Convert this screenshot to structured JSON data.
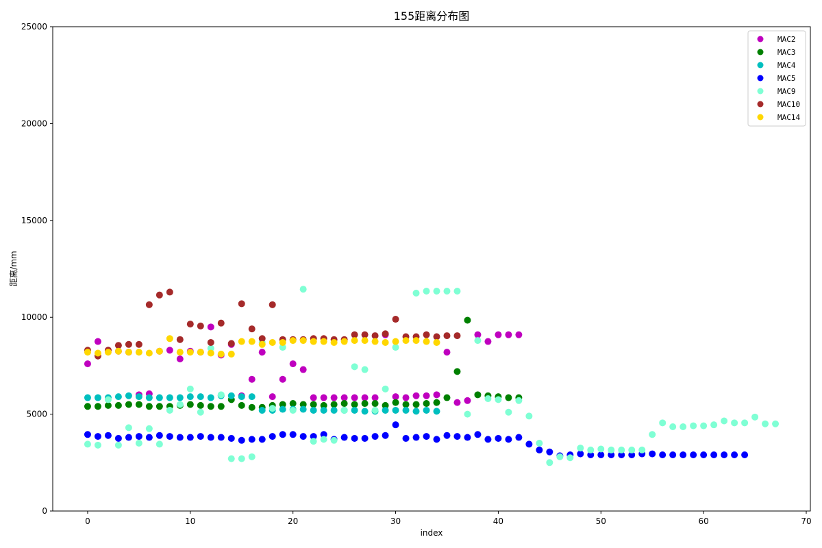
{
  "chart_data": {
    "type": "scatter",
    "title": "155距离分布图",
    "xlabel": "index",
    "ylabel": "距离/mm",
    "xlim": [
      -3.4,
      70.4
    ],
    "ylim": [
      0,
      25000
    ],
    "xticks": [
      0,
      10,
      20,
      30,
      40,
      50,
      60,
      70
    ],
    "yticks": [
      0,
      5000,
      10000,
      15000,
      20000,
      25000
    ],
    "grid": false,
    "legend_position": "top-right",
    "series": [
      {
        "name": "MAC2",
        "color": "#bf00bf",
        "points": [
          [
            0,
            7600
          ],
          [
            1,
            8750
          ],
          [
            2,
            8300
          ],
          [
            3,
            8250
          ],
          [
            4,
            8200
          ],
          [
            5,
            6000
          ],
          [
            6,
            6050
          ],
          [
            7,
            8250
          ],
          [
            8,
            8300
          ],
          [
            9,
            7850
          ],
          [
            10,
            8250
          ],
          [
            11,
            8200
          ],
          [
            12,
            9500
          ],
          [
            13,
            8050
          ],
          [
            14,
            8600
          ],
          [
            15,
            5950
          ],
          [
            16,
            6800
          ],
          [
            17,
            8200
          ],
          [
            18,
            5900
          ],
          [
            19,
            6800
          ],
          [
            20,
            7600
          ],
          [
            21,
            7300
          ],
          [
            22,
            5850
          ],
          [
            23,
            5850
          ],
          [
            24,
            5850
          ],
          [
            25,
            5850
          ],
          [
            26,
            5850
          ],
          [
            27,
            5850
          ],
          [
            28,
            5850
          ],
          [
            29,
            9100
          ],
          [
            30,
            5900
          ],
          [
            31,
            5850
          ],
          [
            32,
            5950
          ],
          [
            33,
            5950
          ],
          [
            34,
            6000
          ],
          [
            35,
            8200
          ],
          [
            36,
            5600
          ],
          [
            37,
            5700
          ],
          [
            38,
            9100
          ],
          [
            39,
            8750
          ],
          [
            40,
            9100
          ],
          [
            41,
            9100
          ],
          [
            42,
            9100
          ]
        ]
      },
      {
        "name": "MAC3",
        "color": "#008000",
        "points": [
          [
            0,
            5400
          ],
          [
            1,
            5400
          ],
          [
            2,
            5450
          ],
          [
            3,
            5450
          ],
          [
            4,
            5500
          ],
          [
            5,
            5500
          ],
          [
            6,
            5400
          ],
          [
            7,
            5400
          ],
          [
            8,
            5400
          ],
          [
            9,
            5450
          ],
          [
            10,
            5500
          ],
          [
            11,
            5450
          ],
          [
            12,
            5400
          ],
          [
            13,
            5400
          ],
          [
            14,
            5750
          ],
          [
            15,
            5450
          ],
          [
            16,
            5350
          ],
          [
            17,
            5350
          ],
          [
            18,
            5450
          ],
          [
            19,
            5500
          ],
          [
            20,
            5550
          ],
          [
            21,
            5500
          ],
          [
            22,
            5500
          ],
          [
            23,
            5450
          ],
          [
            24,
            5500
          ],
          [
            25,
            5550
          ],
          [
            26,
            5500
          ],
          [
            27,
            5550
          ],
          [
            28,
            5550
          ],
          [
            29,
            5450
          ],
          [
            30,
            5600
          ],
          [
            31,
            5500
          ],
          [
            32,
            5500
          ],
          [
            33,
            5550
          ],
          [
            34,
            5600
          ],
          [
            35,
            5850
          ],
          [
            36,
            7200
          ],
          [
            37,
            9850
          ],
          [
            38,
            6000
          ],
          [
            39,
            5950
          ],
          [
            40,
            5900
          ],
          [
            41,
            5850
          ],
          [
            42,
            5850
          ]
        ]
      },
      {
        "name": "MAC4",
        "color": "#00bfbf",
        "points": [
          [
            0,
            5850
          ],
          [
            1,
            5850
          ],
          [
            2,
            5850
          ],
          [
            3,
            5900
          ],
          [
            4,
            5950
          ],
          [
            5,
            5900
          ],
          [
            6,
            5850
          ],
          [
            7,
            5850
          ],
          [
            8,
            5850
          ],
          [
            9,
            5850
          ],
          [
            10,
            5900
          ],
          [
            11,
            5900
          ],
          [
            12,
            5850
          ],
          [
            13,
            5950
          ],
          [
            14,
            5950
          ],
          [
            15,
            5900
          ],
          [
            16,
            5900
          ],
          [
            17,
            5200
          ],
          [
            18,
            5200
          ],
          [
            19,
            5250
          ],
          [
            20,
            5250
          ],
          [
            21,
            5250
          ],
          [
            22,
            5200
          ],
          [
            23,
            5200
          ],
          [
            24,
            5200
          ],
          [
            25,
            5200
          ],
          [
            26,
            5200
          ],
          [
            27,
            5150
          ],
          [
            28,
            5150
          ],
          [
            29,
            5200
          ],
          [
            30,
            5200
          ],
          [
            31,
            5200
          ],
          [
            32,
            5150
          ],
          [
            33,
            5200
          ],
          [
            34,
            5150
          ]
        ]
      },
      {
        "name": "MAC5",
        "color": "#0000ff",
        "points": [
          [
            0,
            3950
          ],
          [
            1,
            3850
          ],
          [
            2,
            3900
          ],
          [
            3,
            3750
          ],
          [
            4,
            3800
          ],
          [
            5,
            3850
          ],
          [
            6,
            3800
          ],
          [
            7,
            3900
          ],
          [
            8,
            3850
          ],
          [
            9,
            3800
          ],
          [
            10,
            3800
          ],
          [
            11,
            3850
          ],
          [
            12,
            3800
          ],
          [
            13,
            3800
          ],
          [
            14,
            3750
          ],
          [
            15,
            3650
          ],
          [
            16,
            3700
          ],
          [
            17,
            3700
          ],
          [
            18,
            3850
          ],
          [
            19,
            3950
          ],
          [
            20,
            3950
          ],
          [
            21,
            3850
          ],
          [
            22,
            3850
          ],
          [
            23,
            3950
          ],
          [
            24,
            3700
          ],
          [
            25,
            3800
          ],
          [
            26,
            3750
          ],
          [
            27,
            3750
          ],
          [
            28,
            3850
          ],
          [
            29,
            3900
          ],
          [
            30,
            4450
          ],
          [
            31,
            3750
          ],
          [
            32,
            3800
          ],
          [
            33,
            3850
          ],
          [
            34,
            3700
          ],
          [
            35,
            3900
          ],
          [
            36,
            3850
          ],
          [
            37,
            3800
          ],
          [
            38,
            3950
          ],
          [
            39,
            3700
          ],
          [
            40,
            3750
          ],
          [
            41,
            3700
          ],
          [
            42,
            3800
          ],
          [
            43,
            3450
          ],
          [
            44,
            3150
          ],
          [
            45,
            3050
          ],
          [
            46,
            2850
          ],
          [
            47,
            2900
          ],
          [
            48,
            2950
          ],
          [
            49,
            2900
          ],
          [
            50,
            2900
          ],
          [
            51,
            2900
          ],
          [
            52,
            2900
          ],
          [
            53,
            2900
          ],
          [
            54,
            2950
          ],
          [
            55,
            2950
          ],
          [
            56,
            2900
          ],
          [
            57,
            2900
          ],
          [
            58,
            2900
          ],
          [
            59,
            2900
          ],
          [
            60,
            2900
          ],
          [
            61,
            2900
          ],
          [
            62,
            2900
          ],
          [
            63,
            2900
          ],
          [
            64,
            2900
          ]
        ]
      },
      {
        "name": "MAC9",
        "color": "#7fffd4",
        "points": [
          [
            0,
            3450
          ],
          [
            1,
            3400
          ],
          [
            2,
            5750
          ],
          [
            3,
            3400
          ],
          [
            4,
            4300
          ],
          [
            5,
            3500
          ],
          [
            6,
            4250
          ],
          [
            7,
            3450
          ],
          [
            8,
            5200
          ],
          [
            9,
            5500
          ],
          [
            10,
            6300
          ],
          [
            11,
            5100
          ],
          [
            12,
            8400
          ],
          [
            13,
            6000
          ],
          [
            14,
            2700
          ],
          [
            15,
            2700
          ],
          [
            16,
            2800
          ],
          [
            17,
            8700
          ],
          [
            18,
            5300
          ],
          [
            19,
            8450
          ],
          [
            20,
            5200
          ],
          [
            21,
            11450
          ],
          [
            22,
            3600
          ],
          [
            23,
            3700
          ],
          [
            24,
            3650
          ],
          [
            25,
            5200
          ],
          [
            26,
            7450
          ],
          [
            27,
            7300
          ],
          [
            28,
            5200
          ],
          [
            29,
            6300
          ],
          [
            30,
            8450
          ],
          [
            32,
            11250
          ],
          [
            33,
            11350
          ],
          [
            34,
            11350
          ],
          [
            35,
            11350
          ],
          [
            36,
            11350
          ],
          [
            37,
            5000
          ],
          [
            38,
            8800
          ],
          [
            39,
            5800
          ],
          [
            40,
            5750
          ],
          [
            41,
            5100
          ],
          [
            42,
            5700
          ],
          [
            43,
            4900
          ],
          [
            44,
            3500
          ],
          [
            45,
            2500
          ],
          [
            46,
            2800
          ],
          [
            47,
            2750
          ],
          [
            48,
            3250
          ],
          [
            49,
            3150
          ],
          [
            50,
            3200
          ],
          [
            51,
            3150
          ],
          [
            52,
            3150
          ],
          [
            53,
            3150
          ],
          [
            54,
            3150
          ],
          [
            55,
            3950
          ],
          [
            56,
            4550
          ],
          [
            57,
            4350
          ],
          [
            58,
            4350
          ],
          [
            59,
            4400
          ],
          [
            60,
            4400
          ],
          [
            61,
            4450
          ],
          [
            62,
            4650
          ],
          [
            63,
            4550
          ],
          [
            64,
            4550
          ],
          [
            65,
            4850
          ],
          [
            66,
            4500
          ],
          [
            67,
            4500
          ]
        ]
      },
      {
        "name": "MAC10",
        "color": "#a52a2a",
        "points": [
          [
            0,
            8300
          ],
          [
            1,
            8000
          ],
          [
            2,
            8300
          ],
          [
            3,
            8550
          ],
          [
            4,
            8600
          ],
          [
            5,
            8600
          ],
          [
            6,
            10650
          ],
          [
            7,
            11150
          ],
          [
            8,
            11300
          ],
          [
            9,
            8850
          ],
          [
            10,
            9650
          ],
          [
            11,
            9550
          ],
          [
            12,
            8700
          ],
          [
            13,
            9700
          ],
          [
            14,
            8650
          ],
          [
            15,
            10700
          ],
          [
            16,
            9400
          ],
          [
            17,
            8900
          ],
          [
            18,
            10650
          ],
          [
            19,
            8850
          ],
          [
            20,
            8850
          ],
          [
            21,
            8850
          ],
          [
            22,
            8900
          ],
          [
            23,
            8900
          ],
          [
            24,
            8850
          ],
          [
            25,
            8850
          ],
          [
            26,
            9100
          ],
          [
            27,
            9100
          ],
          [
            28,
            9050
          ],
          [
            29,
            9150
          ],
          [
            30,
            9900
          ],
          [
            31,
            9000
          ],
          [
            32,
            9000
          ],
          [
            33,
            9100
          ],
          [
            34,
            9000
          ],
          [
            35,
            9050
          ],
          [
            36,
            9050
          ]
        ]
      },
      {
        "name": "MAC14",
        "color": "#ffd700",
        "points": [
          [
            0,
            8200
          ],
          [
            1,
            8150
          ],
          [
            2,
            8200
          ],
          [
            3,
            8250
          ],
          [
            4,
            8200
          ],
          [
            5,
            8200
          ],
          [
            6,
            8150
          ],
          [
            7,
            8250
          ],
          [
            8,
            8900
          ],
          [
            9,
            8200
          ],
          [
            10,
            8200
          ],
          [
            11,
            8200
          ],
          [
            12,
            8150
          ],
          [
            13,
            8100
          ],
          [
            14,
            8100
          ],
          [
            15,
            8750
          ],
          [
            16,
            8750
          ],
          [
            17,
            8600
          ],
          [
            18,
            8700
          ],
          [
            19,
            8700
          ],
          [
            20,
            8800
          ],
          [
            21,
            8800
          ],
          [
            22,
            8750
          ],
          [
            23,
            8750
          ],
          [
            24,
            8700
          ],
          [
            25,
            8750
          ],
          [
            26,
            8800
          ],
          [
            27,
            8800
          ],
          [
            28,
            8750
          ],
          [
            29,
            8700
          ],
          [
            30,
            8750
          ],
          [
            31,
            8800
          ],
          [
            32,
            8800
          ],
          [
            33,
            8750
          ],
          [
            34,
            8700
          ]
        ]
      }
    ]
  }
}
